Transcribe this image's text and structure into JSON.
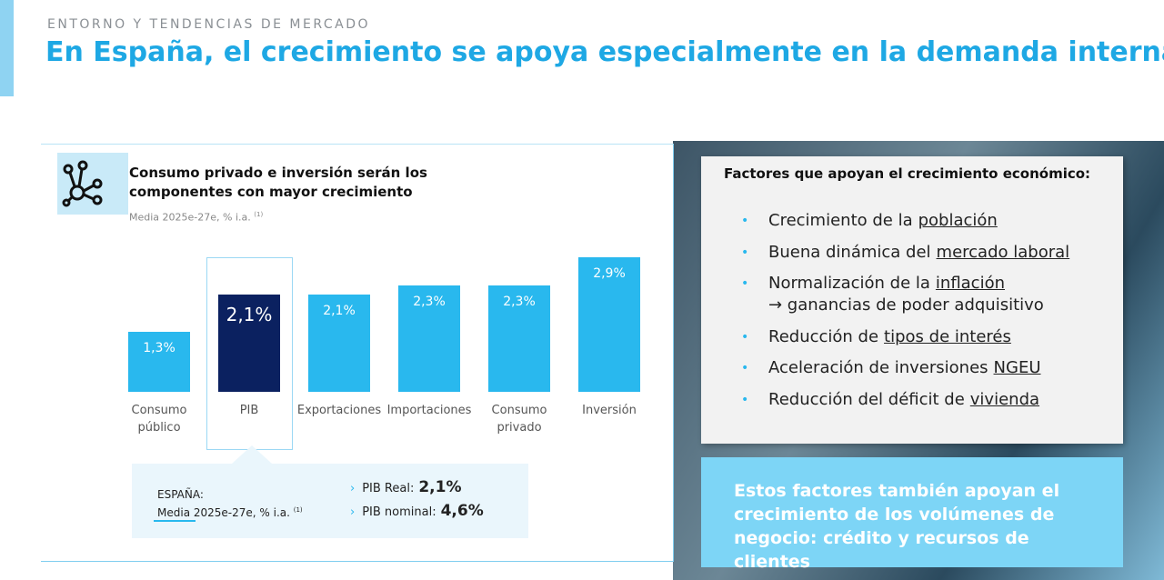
{
  "header": {
    "kicker": "ENTORNO Y TENDENCIAS DE MERCADO",
    "title": "En España, el crecimiento se apoya especialmente en la demanda interna"
  },
  "chart_data": {
    "type": "bar",
    "title": "Consumo privado e inversión serán los componentes con mayor crecimiento",
    "subtitle": "Media 2025e-27e, % i.a.",
    "subtitle_note": "(1)",
    "categories": [
      "Consumo público",
      "PIB",
      "Exportaciones",
      "Importaciones",
      "Consumo privado",
      "Inversión"
    ],
    "values": [
      1.3,
      2.1,
      2.1,
      2.3,
      2.3,
      2.9
    ],
    "value_labels": [
      "1,3%",
      "2,1%",
      "2,1%",
      "2,3%",
      "2,3%",
      "2,9%"
    ],
    "colors": [
      "#29b8ee",
      "#0b2160",
      "#29b8ee",
      "#29b8ee",
      "#29b8ee",
      "#29b8ee"
    ]
  },
  "summary": {
    "label": "ESPAÑA:",
    "sub": "Media 2025e-27e, % i.a.",
    "note": "(1)",
    "items": [
      {
        "label": "PIB Real:",
        "value": "2,1%"
      },
      {
        "label": "PIB nominal:",
        "value": "4,6%"
      }
    ]
  },
  "factors": {
    "title": "Factores que apoyan el crecimiento económico:",
    "items": [
      {
        "text": "Crecimiento de la",
        "link": "población"
      },
      {
        "text": "Buena dinámica del",
        "link": "mercado laboral"
      },
      {
        "text": "Normalización de la",
        "link": "inflación",
        "extra": "→ ganancias de poder adquisitivo"
      },
      {
        "text": "Reducción de",
        "link": "tipos de interés"
      },
      {
        "text": "Aceleración de inversiones",
        "link": "NGEU"
      },
      {
        "text": "Reducción del déficit de",
        "link": "vivienda"
      }
    ]
  },
  "callout": "Estos factores también apoyan el crecimiento de los volúmenes de negocio: crédito y recursos de clientes"
}
